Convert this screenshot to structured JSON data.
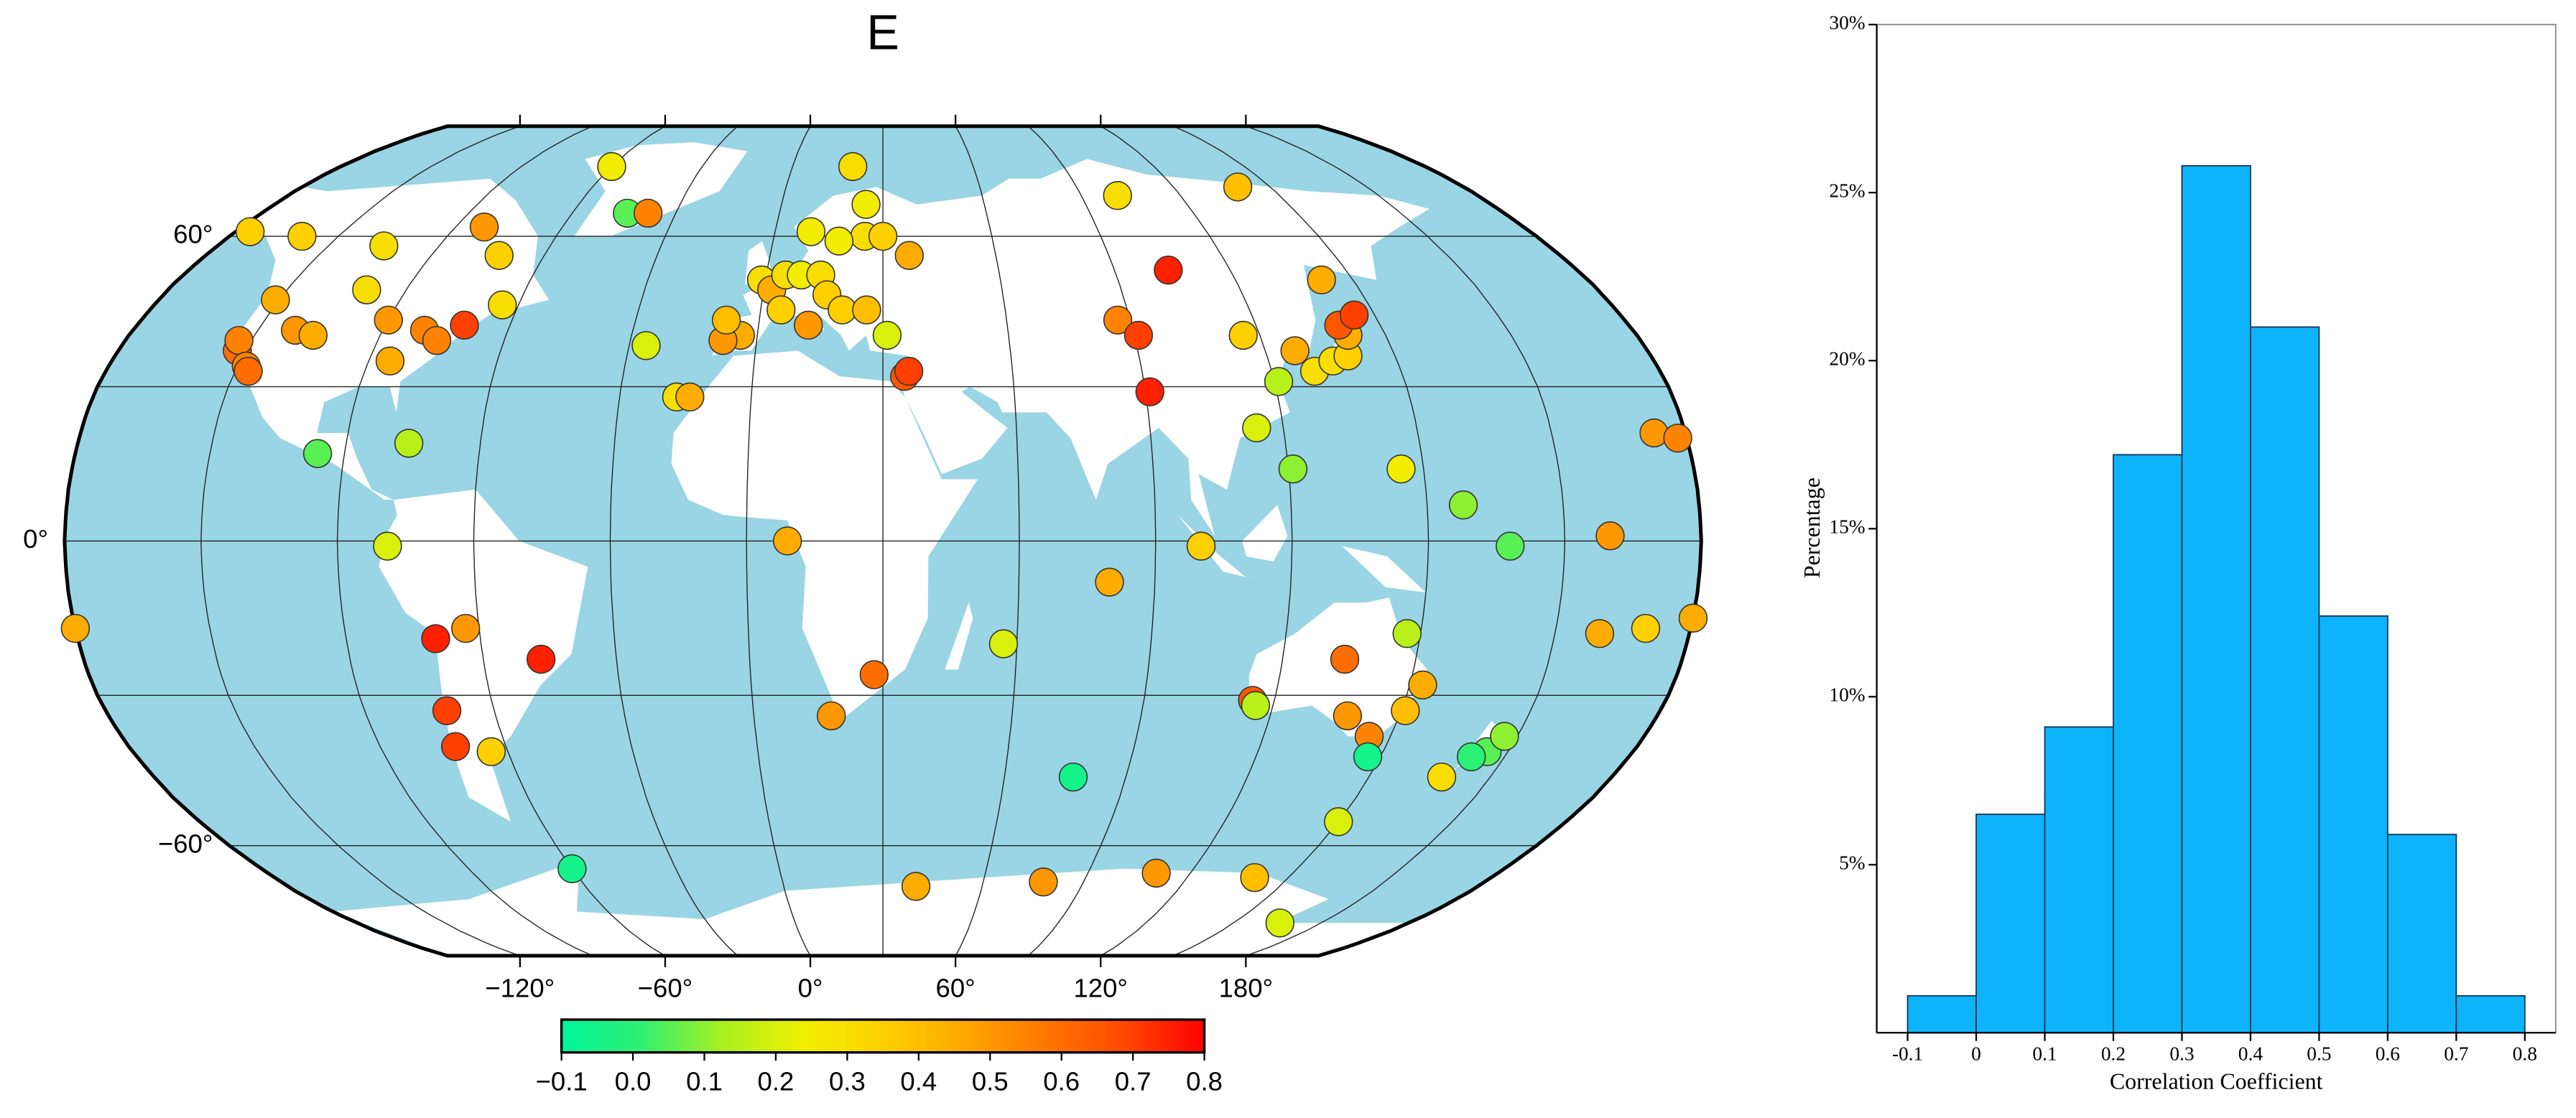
{
  "chart_data": [
    {
      "type": "map",
      "title": "E",
      "projection": "robinson",
      "center_lon": 30,
      "x": [
        -122,
        -123,
        -121,
        -118,
        -117,
        -111,
        -106,
        -100,
        -90,
        -85,
        -80,
        -76,
        -71,
        -64,
        -72,
        -82,
        -146,
        -130,
        -105,
        -60,
        -96,
        -76,
        -79,
        -44,
        -38,
        -70,
        -71,
        -63,
        -47,
        -64,
        -72,
        -60,
        -1,
        2,
        5,
        9,
        14,
        16,
        -4,
        -8,
        -8,
        5,
        12,
        20,
        26,
        25,
        18,
        10,
        25,
        20,
        -17,
        -14,
        -26,
        30,
        37,
        31,
        35,
        36,
        9,
        18,
        28,
        57,
        77,
        80,
        100,
        115,
        134,
        147,
        151,
        145,
        138,
        116,
        147,
        153,
        175,
        172,
        177,
        168,
        150,
        40,
        78,
        110,
        140,
        166,
        87,
        91,
        91,
        104,
        101,
        140,
        116,
        121,
        114,
        121,
        127,
        130,
        135,
        139,
        141,
        140,
        145,
        142,
        145,
        158,
        168,
        203,
        208,
        190,
        190,
        200,
        210,
        -150
      ],
      "y": [
        37,
        39,
        47,
        34,
        33,
        41,
        40,
        49,
        43,
        35,
        41,
        39,
        42,
        46,
        56,
        62,
        61,
        60,
        58,
        76,
        17,
        19,
        -1,
        65,
        65,
        -19,
        -33,
        -17,
        -23,
        -41,
        -40,
        -65,
        51,
        49,
        52,
        52,
        52,
        48,
        40,
        39,
        43,
        45,
        42,
        45,
        45,
        60,
        59,
        61,
        67,
        76,
        28,
        28,
        38,
        60,
        56,
        40,
        32,
        33,
        0,
        -34,
        -26,
        -20,
        -46,
        -8,
        -1,
        -31,
        -23,
        -18,
        -33,
        -38,
        -34,
        -32,
        -42,
        -28,
        -41,
        -42,
        -38,
        -46,
        -55,
        -69,
        -68,
        -66,
        -67,
        -78,
        43,
        40,
        29,
        53,
        69,
        71,
        40,
        31,
        22,
        14,
        37,
        33,
        35,
        36,
        40,
        42,
        44,
        51,
        14,
        7,
        -1,
        21,
        20,
        1,
        -18,
        -17,
        -15,
        -17
      ],
      "values": [
        0.6,
        0.55,
        0.45,
        0.55,
        0.6,
        0.5,
        0.45,
        0.3,
        0.5,
        0.45,
        0.55,
        0.55,
        0.7,
        0.3,
        0.35,
        0.5,
        0.35,
        0.35,
        0.3,
        0.25,
        0.05,
        0.15,
        0.2,
        0.05,
        0.55,
        0.75,
        0.7,
        0.5,
        0.75,
        0.35,
        0.7,
        -0.05,
        0.3,
        0.45,
        0.3,
        0.25,
        0.3,
        0.35,
        0.45,
        0.5,
        0.4,
        0.35,
        0.5,
        0.35,
        0.4,
        0.3,
        0.25,
        0.25,
        0.25,
        0.3,
        0.3,
        0.45,
        0.2,
        0.35,
        0.45,
        0.2,
        0.65,
        0.7,
        0.45,
        0.5,
        0.6,
        0.2,
        -0.05,
        0.45,
        0.35,
        0.65,
        0.6,
        0.15,
        0.4,
        0.55,
        0.5,
        0.15,
        -0.05,
        0.45,
        0.05,
        0.0,
        0.1,
        0.3,
        0.2,
        0.45,
        0.5,
        0.5,
        0.4,
        0.2,
        0.55,
        0.7,
        0.75,
        0.75,
        0.3,
        0.4,
        0.35,
        0.15,
        0.2,
        0.1,
        0.45,
        0.3,
        0.3,
        0.35,
        0.45,
        0.65,
        0.7,
        0.45,
        0.25,
        0.1,
        0.05,
        0.5,
        0.55,
        0.5,
        0.45,
        0.35,
        0.45,
        0.45
      ],
      "xticks": [
        {
          "value": -120,
          "label": "−120°"
        },
        {
          "value": -60,
          "label": "−60°"
        },
        {
          "value": 0,
          "label": "0°"
        },
        {
          "value": 60,
          "label": "60°"
        },
        {
          "value": 120,
          "label": "120°"
        },
        {
          "value": 180,
          "label": "180°"
        }
      ],
      "yticks": [
        {
          "value": 60,
          "label": "60°"
        },
        {
          "value": 0,
          "label": "0°"
        },
        {
          "value": -60,
          "label": "−60°"
        }
      ],
      "ocean_color": "#99d5e4",
      "land_color": "#ffffff",
      "colorbar": {
        "clim": [
          -0.1,
          0.8
        ],
        "colors": [
          "#00f5a0",
          "#30f070",
          "#a8f020",
          "#f0f000",
          "#ffd000",
          "#ffa800",
          "#ff7800",
          "#ff4800",
          "#ff0000"
        ],
        "ticks": [
          {
            "value": -0.1,
            "label": "−0.1"
          },
          {
            "value": 0,
            "label": "0.0"
          },
          0.1,
          0.2,
          0.3,
          0.4,
          0.5,
          0.6,
          0.7,
          0.8
        ]
      }
    },
    {
      "type": "histogram",
      "xlabel": "Correlation Coefficient",
      "ylabel": "Percentage",
      "bins": [
        -0.1,
        0,
        0.1,
        0.2,
        0.3,
        0.4,
        0.5,
        0.6,
        0.7,
        0.8
      ],
      "values": [
        1.1,
        6.5,
        9.1,
        17.2,
        25.8,
        21.0,
        12.4,
        5.9,
        1.1
      ],
      "color": "#0db4fb",
      "xlim": [
        -0.145,
        0.845
      ],
      "ylim": [
        0,
        30
      ],
      "xticks": [
        -0.1,
        0,
        0.1,
        0.2,
        0.3,
        0.4,
        0.5,
        0.6,
        0.7,
        0.8
      ],
      "yticks": [
        {
          "value": 5,
          "label": "5%"
        },
        {
          "value": 10,
          "label": "10%"
        },
        {
          "value": 15,
          "label": "15%"
        },
        {
          "value": 20,
          "label": "20%"
        },
        {
          "value": 25,
          "label": "25%"
        },
        {
          "value": 30,
          "label": "30%"
        }
      ]
    }
  ]
}
